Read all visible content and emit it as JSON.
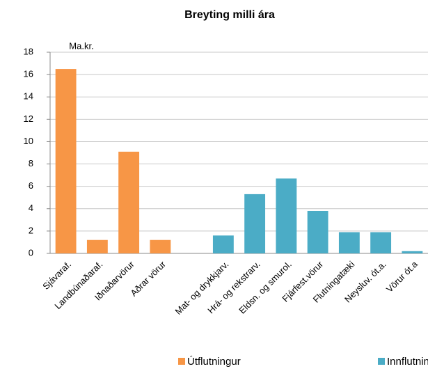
{
  "chart_data": {
    "type": "bar",
    "title": "Breyting milli ára",
    "unit_label": "Ma.kr.",
    "categories": [
      "Sjávaraf.",
      "Landbúnaðaraf.",
      "Iðnaðarvörur",
      "Aðrar vörur",
      null,
      "Mat- og drykkjarv.",
      "Hrá- og rekstrarv.",
      "Eldsn. og smurol.",
      "Fjárfest.vörur",
      "Flutningatæki",
      "Neysluv. ót.a.",
      "Vörur ót.a"
    ],
    "series": [
      {
        "name": "Útflutningur",
        "color": "#f79646",
        "values": [
          16.5,
          1.2,
          9.1,
          1.2,
          null,
          null,
          null,
          null,
          null,
          null,
          null,
          null
        ]
      },
      {
        "name": "Innflutningur",
        "color": "#4bacc6",
        "values": [
          null,
          null,
          null,
          null,
          null,
          1.6,
          5.3,
          6.7,
          3.8,
          1.9,
          1.9,
          0.2
        ]
      }
    ],
    "ylim": [
      0,
      18
    ],
    "yticks": [
      0,
      2,
      4,
      6,
      8,
      10,
      12,
      14,
      16,
      18
    ],
    "grid": true
  }
}
